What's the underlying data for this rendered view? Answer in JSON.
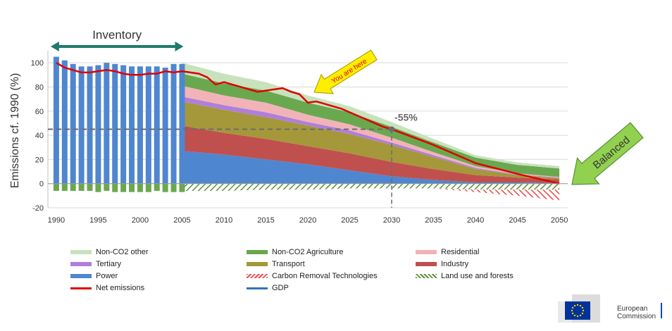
{
  "chart_data": {
    "type": "area",
    "ylabel": "Emissions cf. 1990 (%)",
    "ylim": [
      -20,
      110
    ],
    "xlim": [
      1989,
      2051
    ],
    "yticks": [
      -20,
      0,
      20,
      40,
      60,
      80,
      100
    ],
    "xticks": [
      1990,
      1995,
      2000,
      2005,
      2010,
      2015,
      2020,
      2025,
      2030,
      2035,
      2040,
      2045,
      2050
    ],
    "inventory": {
      "label": "Inventory",
      "years": [
        1990,
        1991,
        1992,
        1993,
        1994,
        1995,
        1996,
        1997,
        1998,
        1999,
        2000,
        2001,
        2002,
        2003,
        2004,
        2005
      ],
      "positive": [
        105,
        102,
        99,
        97,
        97,
        98,
        100,
        99,
        98,
        97,
        97,
        97,
        97,
        96,
        99,
        99
      ],
      "negative": [
        -6,
        -6,
        -6,
        -6,
        -6,
        -7,
        -6,
        -7,
        -7,
        -7,
        -7,
        -7,
        -6,
        -7,
        -7,
        -7
      ]
    },
    "projection": {
      "years": [
        2005,
        2010,
        2015,
        2020,
        2025,
        2030,
        2035,
        2040,
        2045,
        2050
      ],
      "stacks": [
        {
          "name": "Power",
          "color": "#4f86d0",
          "values": [
            27,
            24,
            20,
            16,
            11,
            6,
            3,
            1,
            1,
            0.5
          ]
        },
        {
          "name": "Industry",
          "color": "#c0504d",
          "values": [
            21,
            18,
            17,
            15,
            14,
            12,
            9,
            6,
            4,
            3
          ]
        },
        {
          "name": "Transport",
          "color": "#a4983a",
          "values": [
            20,
            19,
            18,
            17,
            16,
            14,
            10,
            5,
            2,
            1
          ]
        },
        {
          "name": "Tertiary",
          "color": "#b07fd9",
          "values": [
            4,
            4,
            4,
            3,
            3,
            2,
            1.5,
            1,
            0.5,
            0.5
          ]
        },
        {
          "name": "Residential",
          "color": "#f2b3b8",
          "values": [
            9,
            8,
            8,
            6,
            5,
            4,
            2.5,
            1.5,
            1,
            0.5
          ]
        },
        {
          "name": "Non-CO2 Agriculture",
          "color": "#6aa84f",
          "values": [
            10,
            10,
            10,
            10,
            10,
            9,
            8,
            7,
            7,
            7
          ]
        },
        {
          "name": "Non-CO2 other",
          "color": "#c8e2bd",
          "values": [
            9,
            8,
            7,
            6,
            5,
            4,
            3,
            2,
            2,
            2
          ]
        }
      ],
      "lulucf": {
        "name": "Land use and forests",
        "values": [
          -6,
          -6,
          -5,
          -5,
          -4,
          -4,
          -4,
          -5,
          -5,
          -5
        ]
      },
      "crt": {
        "name": "Carbon Removal Technologies",
        "values": [
          0,
          0,
          0,
          0,
          0,
          0,
          0,
          -2,
          -5,
          -9
        ]
      }
    },
    "net_emissions": {
      "name": "Net emissions",
      "color": "#e00000",
      "x": [
        1990,
        1991,
        1992,
        1993,
        1994,
        1995,
        1996,
        1997,
        1998,
        1999,
        2000,
        2001,
        2002,
        2003,
        2004,
        2005,
        2006,
        2007,
        2008,
        2009,
        2010,
        2011,
        2012,
        2013,
        2014,
        2015,
        2016,
        2017,
        2018,
        2019,
        2020,
        2021,
        2022,
        2023,
        2024,
        2025,
        2026,
        2027,
        2028,
        2029,
        2030,
        2035,
        2040,
        2045,
        2050
      ],
      "y": [
        100,
        96,
        94,
        92,
        92,
        93,
        94,
        93,
        91,
        90,
        90,
        91,
        91,
        93,
        92,
        93,
        92,
        91,
        88,
        82,
        84,
        82,
        80,
        78,
        76,
        77,
        78,
        79,
        76,
        74,
        67,
        68,
        66,
        64,
        62,
        59,
        56,
        53,
        50,
        47,
        45,
        32,
        17,
        8,
        0
      ]
    },
    "gdp": {
      "name": "GDP",
      "color": "#2e75b6"
    },
    "annotations": {
      "target_label": "-55%",
      "target_x": 2030,
      "target_y": 45,
      "you_are_here": "You are here",
      "balanced": "Balanced"
    },
    "legend": [
      {
        "name": "Non-CO2 other",
        "color": "#c8e2bd",
        "style": "fill"
      },
      {
        "name": "Non-CO2 Agriculture",
        "color": "#6aa84f",
        "style": "fill"
      },
      {
        "name": "Residential",
        "color": "#f2b3b8",
        "style": "fill"
      },
      {
        "name": "Tertiary",
        "color": "#b07fd9",
        "style": "fill"
      },
      {
        "name": "Transport",
        "color": "#a4983a",
        "style": "fill"
      },
      {
        "name": "Industry",
        "color": "#c0504d",
        "style": "fill"
      },
      {
        "name": "Power",
        "color": "#4f86d0",
        "style": "fill"
      },
      {
        "name": "Carbon Removal Technologies",
        "color": "#e84a4a",
        "style": "hatch"
      },
      {
        "name": "Land use and forests",
        "color": "#5a8f3a",
        "style": "hatch"
      },
      {
        "name": "Net emissions",
        "color": "#e00000",
        "style": "line"
      },
      {
        "name": "GDP",
        "color": "#2e75b6",
        "style": "line"
      }
    ],
    "grid": true,
    "legend_position": "bottom"
  },
  "logo": {
    "line1": "European",
    "line2": "Commission"
  }
}
